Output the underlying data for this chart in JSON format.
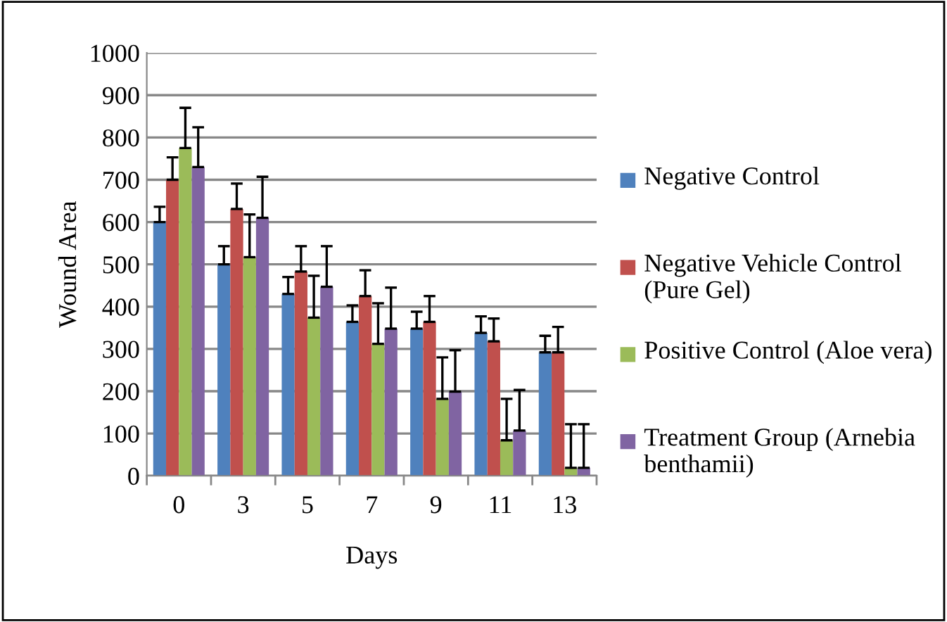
{
  "chart_data": {
    "type": "bar",
    "xlabel": "Days",
    "ylabel": "Wound Area",
    "categories": [
      "0",
      "3",
      "5",
      "7",
      "9",
      "11",
      "13"
    ],
    "series": [
      {
        "name": "Negative Control",
        "color": "#4f81bd",
        "values": [
          600,
          500,
          430,
          364,
          348,
          338,
          292
        ],
        "errors": [
          [
            600,
            636
          ],
          [
            500,
            543
          ],
          [
            430,
            470
          ],
          [
            364,
            403
          ],
          [
            348,
            388
          ],
          [
            338,
            377
          ],
          [
            292,
            331
          ]
        ]
      },
      {
        "name": "Negative Vehicle Control (Pure Gel)",
        "color": "#c0504d",
        "values": [
          700,
          631,
          483,
          425,
          364,
          318,
          292
        ],
        "errors": [
          [
            700,
            753
          ],
          [
            631,
            691
          ],
          [
            483,
            543
          ],
          [
            425,
            486
          ],
          [
            364,
            425
          ],
          [
            318,
            372
          ],
          [
            292,
            352
          ]
        ]
      },
      {
        "name": "Positive Control (Aloe vera)",
        "color": "#9bbb59",
        "values": [
          775,
          517,
          374,
          312,
          182,
          84,
          19
        ],
        "errors": [
          [
            775,
            870
          ],
          [
            517,
            618
          ],
          [
            374,
            473
          ],
          [
            312,
            408
          ],
          [
            182,
            280
          ],
          [
            84,
            182
          ],
          [
            19,
            122
          ]
        ]
      },
      {
        "name": "Treatment Group (Arnebia benthamii)",
        "color": "#8064a2",
        "values": [
          730,
          610,
          447,
          348,
          199,
          107,
          19
        ],
        "errors": [
          [
            730,
            824
          ],
          [
            610,
            707
          ],
          [
            447,
            543
          ],
          [
            348,
            445
          ],
          [
            199,
            297
          ],
          [
            107,
            203
          ],
          [
            19,
            122
          ]
        ]
      }
    ],
    "ylim": [
      0,
      1000
    ],
    "yticks": [
      0,
      100,
      200,
      300,
      400,
      500,
      600,
      700,
      800,
      900,
      1000
    ],
    "grid": "y",
    "legend": "right"
  }
}
